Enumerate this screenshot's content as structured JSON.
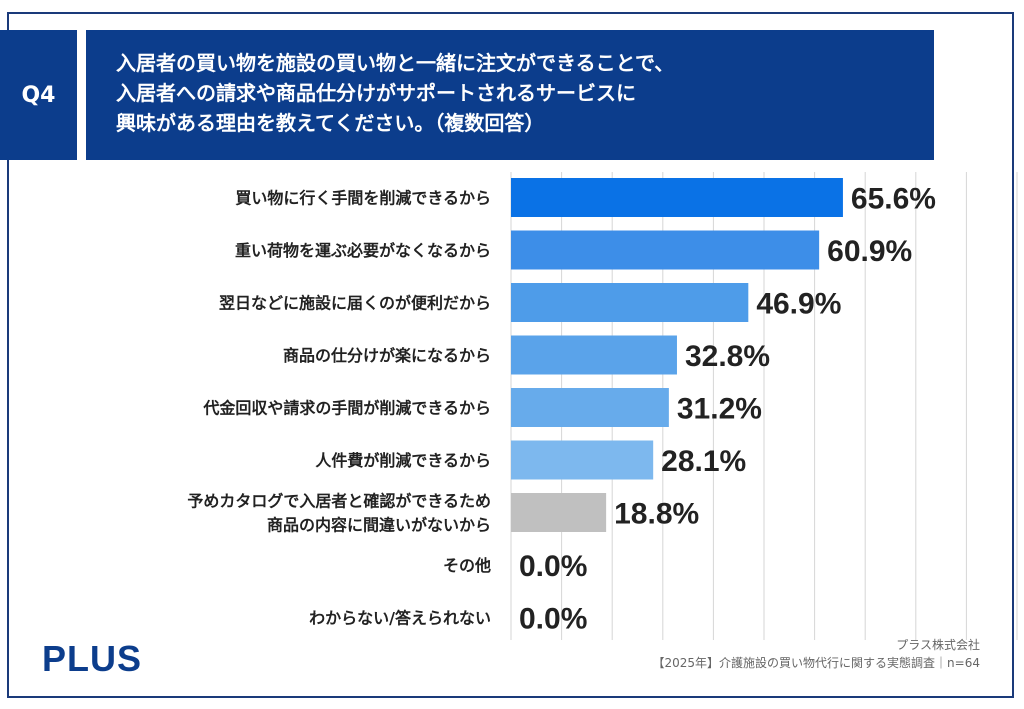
{
  "question": {
    "badge": "Q4",
    "lines": [
      "入居者の買い物を施設の買い物と一緒に注文ができることで、",
      "入居者への請求や商品仕分けがサポートされるサービスに",
      "興味がある理由を教えてください。（複数回答）"
    ]
  },
  "chart_data": {
    "type": "bar",
    "orientation": "horizontal",
    "categories": [
      [
        "買い物に行く手間を削減できるから"
      ],
      [
        "重い荷物を運ぶ必要がなくなるから"
      ],
      [
        "翌日などに施設に届くのが便利だから"
      ],
      [
        "商品の仕分けが楽になるから"
      ],
      [
        "代金回収や請求の手間が削減できるから"
      ],
      [
        "人件費が削減できるから"
      ],
      [
        "予めカタログで入居者と確認ができるため",
        "商品の内容に間違いがないから"
      ],
      [
        "その他"
      ],
      [
        "わからない/答えられない"
      ]
    ],
    "values": [
      65.6,
      60.9,
      46.9,
      32.8,
      31.2,
      28.1,
      18.8,
      0.0,
      0.0
    ],
    "value_labels": [
      "65.6%",
      "60.9%",
      "46.9%",
      "32.8%",
      "31.2%",
      "28.1%",
      "18.8%",
      "0.0%",
      "0.0%"
    ],
    "colors": [
      "#0a72e6",
      "#3d8ee8",
      "#4e9ce9",
      "#5aa3ea",
      "#67abeb",
      "#7db8ee",
      "#c0c0c0",
      "#c0c0c0",
      "#c0c0c0"
    ],
    "xlim": [
      0,
      100
    ],
    "grid": true,
    "unit": "%"
  },
  "brand": {
    "logo": "PLUS"
  },
  "source": {
    "company": "プラス株式会社",
    "survey": "【2025年】介護施設の買い物代行に関する実態調査｜n=64"
  }
}
